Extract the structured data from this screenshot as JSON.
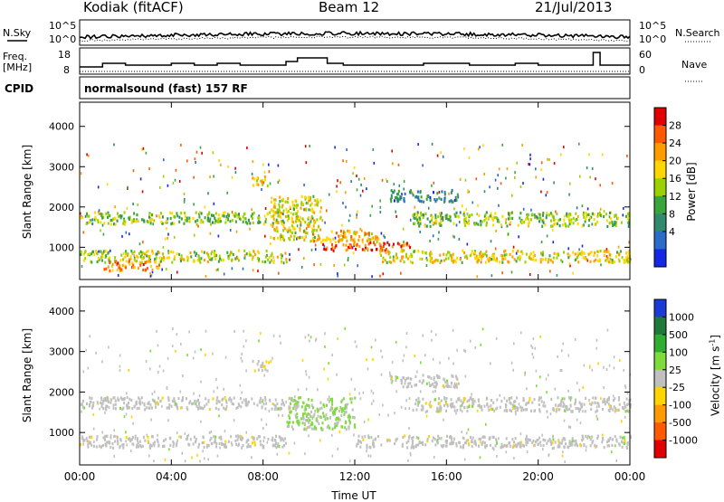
{
  "header": {
    "title": "Kodiak (fitACF)",
    "beam": "Beam 12",
    "date": "21/Jul/2013"
  },
  "noise_panel": {
    "left_label": "N.Sky",
    "right_label": "N.Search",
    "y_ticks": [
      "10^5",
      "10^0"
    ]
  },
  "freq_panel": {
    "left_label_1": "Freq.",
    "left_label_2": "[MHz]",
    "left_ticks": [
      "18",
      "8"
    ],
    "right_label": "Nave",
    "right_ticks": [
      "60",
      "0"
    ]
  },
  "cpid": {
    "label": "CPID",
    "value": "normalsound (fast) 157 RF"
  },
  "power_panel": {
    "ylabel": "Slant Range [km]",
    "y_ticks": [
      "4000",
      "3000",
      "2000",
      "1000"
    ],
    "colorbar_label": "Power [dB]",
    "colorbar_ticks": [
      "28",
      "24",
      "20",
      "16",
      "12",
      "8",
      "4"
    ],
    "colorbar_colors": [
      "#e00000",
      "#ff5a00",
      "#ff9c00",
      "#ffd700",
      "#9bd100",
      "#3aa53a",
      "#2f8a6e",
      "#2a6cc8",
      "#1428e6"
    ]
  },
  "velocity_panel": {
    "ylabel": "Slant Range [km]",
    "y_ticks": [
      "4000",
      "3000",
      "2000",
      "1000"
    ],
    "colorbar_label": "Velocity [m s",
    "colorbar_sup": "-1",
    "colorbar_label_end": "]",
    "colorbar_ticks": [
      "1000",
      "500",
      "100",
      "25",
      "-25",
      "-100",
      "-500",
      "-1000"
    ],
    "colorbar_colors": [
      "#1c3bd6",
      "#1f7a3a",
      "#2fae2f",
      "#7ddc3a",
      "#c0c0c0",
      "#ffd400",
      "#ff9a00",
      "#ff5a00",
      "#e00000"
    ]
  },
  "x_axis": {
    "ticks": [
      "00:00",
      "04:00",
      "08:00",
      "12:00",
      "16:00",
      "20:00",
      "00:00"
    ],
    "label": "Time UT"
  },
  "chart_data": [
    {
      "type": "heatmap",
      "title": "Power",
      "xlabel": "Time UT",
      "ylabel": "Slant Range [km]",
      "xlim_hours": [
        0,
        24
      ],
      "ylim": [
        200,
        4600
      ],
      "colorbar": "Power [dB]",
      "value_range": [
        0,
        30
      ],
      "bands": [
        {
          "t0": 0.0,
          "t1": 9.5,
          "r0": 1600,
          "r1": 1900,
          "value": 14
        },
        {
          "t0": 0.0,
          "t1": 9.0,
          "r0": 650,
          "r1": 950,
          "value": 16
        },
        {
          "t0": 1.0,
          "t1": 3.5,
          "r0": 450,
          "r1": 700,
          "value": 22
        },
        {
          "t0": 7.5,
          "t1": 8.3,
          "r0": 2550,
          "r1": 2800,
          "value": 20
        },
        {
          "t0": 8.3,
          "t1": 10.5,
          "r0": 1200,
          "r1": 2300,
          "value": 18
        },
        {
          "t0": 10.5,
          "t1": 14.5,
          "r0": 950,
          "r1": 1150,
          "value": 26
        },
        {
          "t0": 10.0,
          "t1": 13.0,
          "r0": 1150,
          "r1": 1450,
          "value": 20
        },
        {
          "t0": 13.0,
          "t1": 24.0,
          "r0": 650,
          "r1": 950,
          "value": 18
        },
        {
          "t0": 14.5,
          "t1": 24.0,
          "r0": 1550,
          "r1": 1900,
          "value": 14
        },
        {
          "t0": 13.5,
          "t1": 16.5,
          "r0": 2150,
          "r1": 2450,
          "value": 8
        }
      ]
    },
    {
      "type": "heatmap",
      "title": "Velocity",
      "xlabel": "Time UT",
      "ylabel": "Slant Range [km]",
      "xlim_hours": [
        0,
        24
      ],
      "ylim": [
        200,
        4600
      ],
      "colorbar": "Velocity [m s-1]",
      "value_range": [
        -1000,
        1000
      ],
      "bands": [
        {
          "t0": 0.0,
          "t1": 9.5,
          "r0": 1600,
          "r1": 1900,
          "value": 0
        },
        {
          "t0": 0.0,
          "t1": 9.0,
          "r0": 650,
          "r1": 950,
          "value": 0
        },
        {
          "t0": 9.0,
          "t1": 12.0,
          "r0": 1100,
          "r1": 1900,
          "value": 150
        },
        {
          "t0": 7.5,
          "t1": 8.3,
          "r0": 2550,
          "r1": 2800,
          "value": -60
        },
        {
          "t0": 12.0,
          "t1": 24.0,
          "r0": 650,
          "r1": 950,
          "value": 0
        },
        {
          "t0": 14.5,
          "t1": 24.0,
          "r0": 1550,
          "r1": 1900,
          "value": 0
        },
        {
          "t0": 13.5,
          "t1": 16.5,
          "r0": 2150,
          "r1": 2450,
          "value": 0
        }
      ]
    }
  ]
}
